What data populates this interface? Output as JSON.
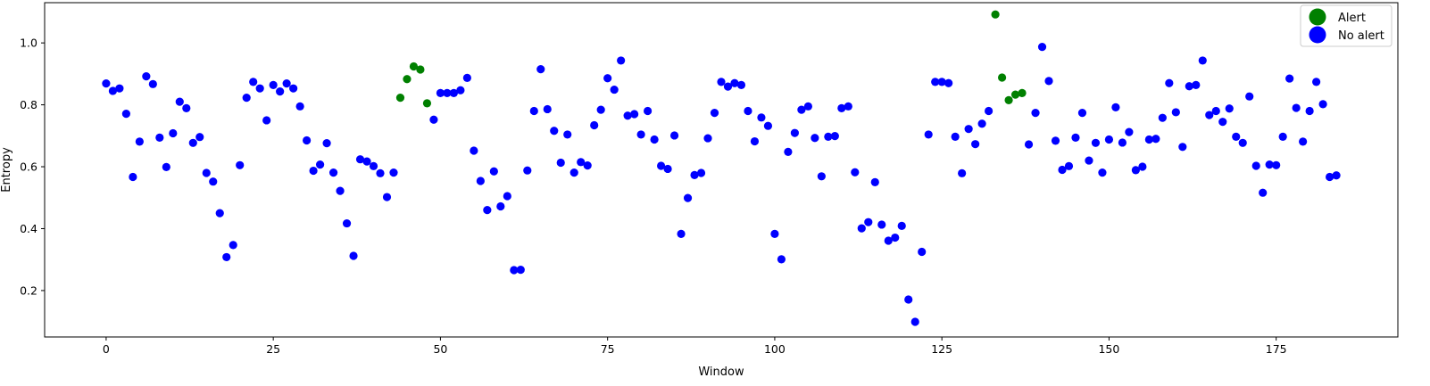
{
  "chart_data": {
    "type": "scatter",
    "title": "",
    "xlabel": "Window",
    "ylabel": "Entropy",
    "xlim": [
      -9.2,
      193.2
    ],
    "ylim": [
      0.05,
      1.13
    ],
    "xticks": [
      0,
      25,
      50,
      75,
      100,
      125,
      150,
      175
    ],
    "yticks": [
      0.2,
      0.4,
      0.6,
      0.8,
      1.0
    ],
    "xtick_labels": [
      "0",
      "25",
      "50",
      "75",
      "100",
      "125",
      "150",
      "175"
    ],
    "ytick_labels": [
      "0.2",
      "0.4",
      "0.6",
      "0.8",
      "1.0"
    ],
    "grid": false,
    "legend_position": "top-right",
    "series": [
      {
        "name": "Alert",
        "color": "#008000",
        "x": [
          44,
          45,
          46,
          47,
          48,
          133,
          134,
          135,
          136,
          137
        ],
        "y": [
          0.823,
          0.883,
          0.924,
          0.914,
          0.805,
          1.092,
          0.888,
          0.815,
          0.833,
          0.838
        ]
      },
      {
        "name": "No alert",
        "color": "#0000ff",
        "x": [
          0,
          1,
          2,
          3,
          4,
          5,
          6,
          7,
          8,
          9,
          10,
          11,
          12,
          13,
          14,
          15,
          16,
          17,
          18,
          19,
          20,
          21,
          22,
          23,
          24,
          25,
          26,
          27,
          28,
          29,
          30,
          31,
          32,
          33,
          34,
          35,
          36,
          37,
          38,
          39,
          40,
          41,
          42,
          43,
          49,
          50,
          51,
          52,
          53,
          54,
          55,
          56,
          57,
          58,
          59,
          60,
          61,
          62,
          63,
          64,
          65,
          66,
          67,
          68,
          69,
          70,
          71,
          72,
          73,
          74,
          75,
          76,
          77,
          78,
          79,
          80,
          81,
          82,
          83,
          84,
          85,
          86,
          87,
          88,
          89,
          90,
          91,
          92,
          93,
          94,
          95,
          96,
          97,
          98,
          99,
          100,
          101,
          102,
          103,
          104,
          105,
          106,
          107,
          108,
          109,
          110,
          111,
          112,
          113,
          114,
          115,
          116,
          117,
          118,
          119,
          120,
          121,
          122,
          123,
          124,
          125,
          126,
          127,
          128,
          129,
          130,
          131,
          132,
          138,
          139,
          140,
          141,
          142,
          143,
          144,
          145,
          146,
          147,
          148,
          149,
          150,
          151,
          152,
          153,
          154,
          155,
          156,
          157,
          158,
          159,
          160,
          161,
          162,
          163,
          164,
          165,
          166,
          167,
          168,
          169,
          170,
          171,
          172,
          173,
          174,
          175,
          176,
          177,
          178,
          179,
          180,
          181,
          182,
          183,
          184
        ],
        "y": [
          0.869,
          0.845,
          0.853,
          0.771,
          0.567,
          0.681,
          0.892,
          0.867,
          0.694,
          0.599,
          0.708,
          0.81,
          0.789,
          0.677,
          0.696,
          0.58,
          0.552,
          0.45,
          0.308,
          0.347,
          0.605,
          0.823,
          0.874,
          0.853,
          0.75,
          0.864,
          0.843,
          0.869,
          0.853,
          0.795,
          0.685,
          0.587,
          0.607,
          0.676,
          0.581,
          0.522,
          0.417,
          0.312,
          0.624,
          0.617,
          0.602,
          0.579,
          0.502,
          0.581,
          0.752,
          0.838,
          0.838,
          0.838,
          0.847,
          0.887,
          0.652,
          0.554,
          0.46,
          0.585,
          0.472,
          0.505,
          0.266,
          0.267,
          0.588,
          0.78,
          0.915,
          0.786,
          0.716,
          0.613,
          0.704,
          0.581,
          0.615,
          0.604,
          0.734,
          0.784,
          0.886,
          0.849,
          0.943,
          0.765,
          0.77,
          0.704,
          0.78,
          0.688,
          0.603,
          0.593,
          0.701,
          0.383,
          0.499,
          0.573,
          0.58,
          0.692,
          0.774,
          0.874,
          0.859,
          0.87,
          0.864,
          0.78,
          0.682,
          0.759,
          0.732,
          0.383,
          0.301,
          0.648,
          0.709,
          0.784,
          0.795,
          0.693,
          0.569,
          0.697,
          0.699,
          0.789,
          0.795,
          0.582,
          0.401,
          0.421,
          0.55,
          0.413,
          0.361,
          0.371,
          0.409,
          0.171,
          0.099,
          0.325,
          0.704,
          0.874,
          0.874,
          0.87,
          0.697,
          0.579,
          0.722,
          0.673,
          0.739,
          0.78,
          0.672,
          0.774,
          0.987,
          0.877,
          0.684,
          0.59,
          0.602,
          0.694,
          0.774,
          0.62,
          0.677,
          0.581,
          0.688,
          0.792,
          0.678,
          0.712,
          0.589,
          0.6,
          0.688,
          0.69,
          0.758,
          0.87,
          0.776,
          0.664,
          0.86,
          0.864,
          0.943,
          0.767,
          0.78,
          0.745,
          0.788,
          0.697,
          0.677,
          0.827,
          0.603,
          0.516,
          0.607,
          0.605,
          0.697,
          0.885,
          0.79,
          0.681,
          0.78,
          0.874,
          0.802,
          0.567,
          0.572
        ]
      }
    ]
  }
}
